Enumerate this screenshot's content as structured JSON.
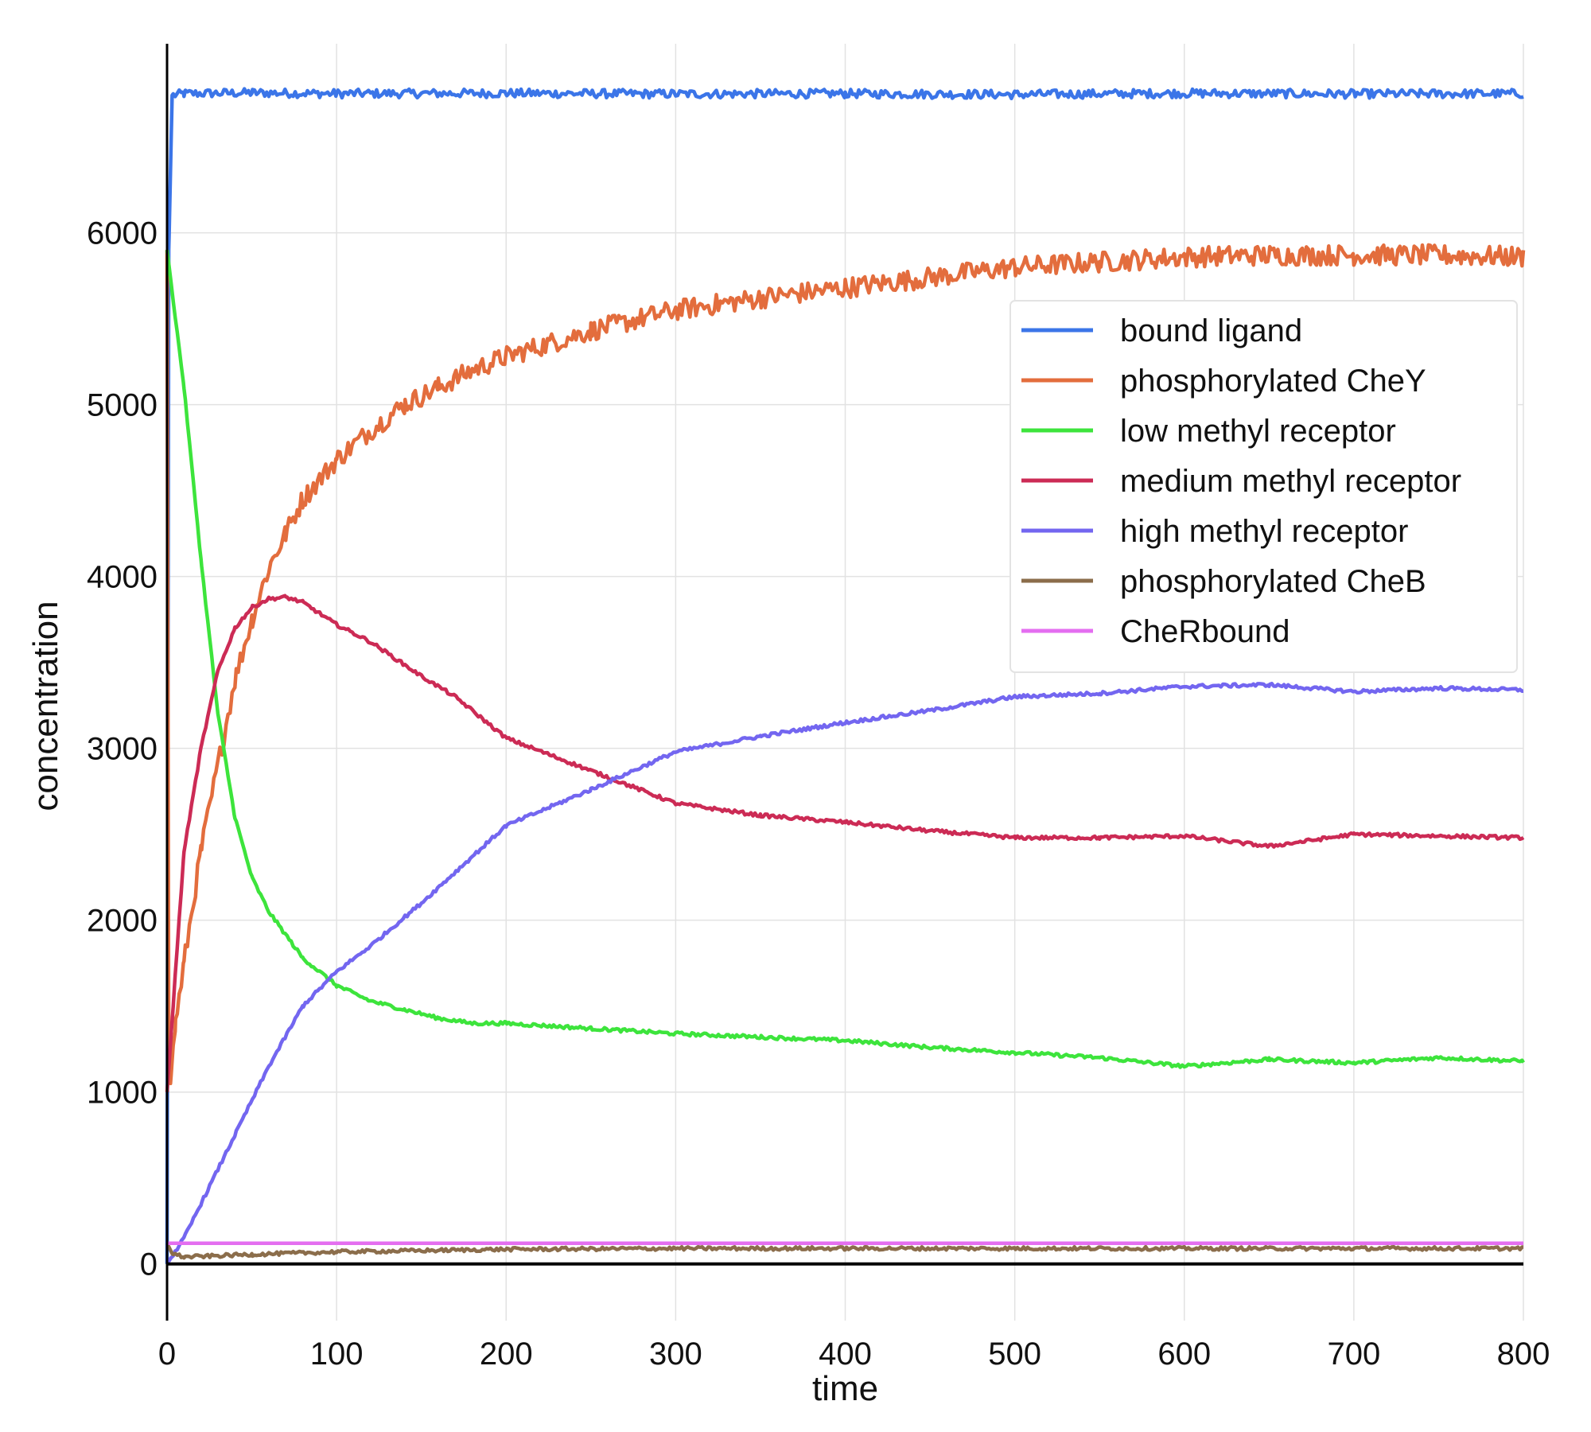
{
  "chart_data": {
    "type": "line",
    "title": "",
    "xlabel": "time",
    "ylabel": "concentration",
    "xlim": [
      0,
      800
    ],
    "ylim": [
      -330,
      7100
    ],
    "xticks": [
      0,
      100,
      200,
      300,
      400,
      500,
      600,
      700,
      800
    ],
    "yticks": [
      0,
      1000,
      2000,
      3000,
      4000,
      5000,
      6000
    ],
    "grid": true,
    "legend_position": "right",
    "series": [
      {
        "name": "bound ligand",
        "color": "#3b75e8",
        "x": [
          0,
          1,
          3,
          10,
          50,
          100,
          200,
          300,
          400,
          500,
          600,
          700,
          800
        ],
        "y": [
          0,
          5900,
          6800,
          6810,
          6815,
          6810,
          6812,
          6808,
          6810,
          6805,
          6812,
          6808,
          6810
        ],
        "noise": 25
      },
      {
        "name": "phosphorylated CheY",
        "color": "#e36d3d",
        "x": [
          0,
          1,
          2,
          5,
          10,
          20,
          30,
          40,
          50,
          60,
          70,
          80,
          100,
          120,
          140,
          160,
          180,
          200,
          250,
          300,
          350,
          400,
          450,
          500,
          550,
          600,
          650,
          700,
          750,
          800
        ],
        "y": [
          5900,
          1200,
          1050,
          1400,
          1750,
          2400,
          2900,
          3400,
          3750,
          4050,
          4250,
          4450,
          4680,
          4850,
          5000,
          5100,
          5200,
          5280,
          5430,
          5550,
          5620,
          5680,
          5740,
          5800,
          5830,
          5860,
          5870,
          5870,
          5870,
          5860
        ],
        "noise": 60
      },
      {
        "name": "low methyl receptor",
        "color": "#3de43c",
        "x": [
          0,
          10,
          20,
          30,
          40,
          50,
          60,
          80,
          100,
          120,
          140,
          160,
          180,
          200,
          250,
          300,
          350,
          400,
          450,
          500,
          550,
          600,
          650,
          700,
          750,
          800
        ],
        "y": [
          5900,
          5100,
          4100,
          3200,
          2600,
          2250,
          2050,
          1780,
          1620,
          1530,
          1480,
          1430,
          1400,
          1400,
          1370,
          1340,
          1320,
          1300,
          1260,
          1230,
          1200,
          1150,
          1190,
          1170,
          1200,
          1180
        ],
        "noise": 10
      },
      {
        "name": "medium methyl receptor",
        "color": "#cc2b55",
        "x": [
          0,
          10,
          20,
          30,
          40,
          50,
          60,
          70,
          80,
          100,
          120,
          150,
          170,
          200,
          250,
          300,
          350,
          400,
          450,
          500,
          550,
          600,
          650,
          700,
          750,
          800
        ],
        "y": [
          1000,
          2400,
          3000,
          3450,
          3700,
          3820,
          3870,
          3880,
          3850,
          3720,
          3620,
          3420,
          3300,
          3060,
          2870,
          2680,
          2610,
          2570,
          2520,
          2480,
          2480,
          2490,
          2430,
          2500,
          2490,
          2480
        ],
        "noise": 10
      },
      {
        "name": "high methyl receptor",
        "color": "#7366f0",
        "x": [
          0,
          10,
          20,
          40,
          60,
          80,
          100,
          120,
          150,
          200,
          250,
          300,
          350,
          400,
          450,
          500,
          550,
          600,
          650,
          700,
          750,
          800
        ],
        "y": [
          0,
          150,
          350,
          750,
          1150,
          1500,
          1700,
          1850,
          2100,
          2550,
          2760,
          2980,
          3070,
          3150,
          3220,
          3300,
          3320,
          3360,
          3370,
          3330,
          3350,
          3340
        ],
        "noise": 10
      },
      {
        "name": "phosphorylated CheB",
        "color": "#8b6d4b",
        "x": [
          0,
          3,
          10,
          50,
          100,
          200,
          300,
          400,
          500,
          600,
          700,
          800
        ],
        "y": [
          120,
          60,
          40,
          55,
          70,
          85,
          90,
          90,
          90,
          90,
          90,
          90
        ],
        "noise": 10
      },
      {
        "name": "CheRbound",
        "color": "#e46ef0",
        "x": [
          0,
          2,
          800
        ],
        "y": [
          120,
          120,
          120
        ],
        "noise": 0
      }
    ]
  }
}
